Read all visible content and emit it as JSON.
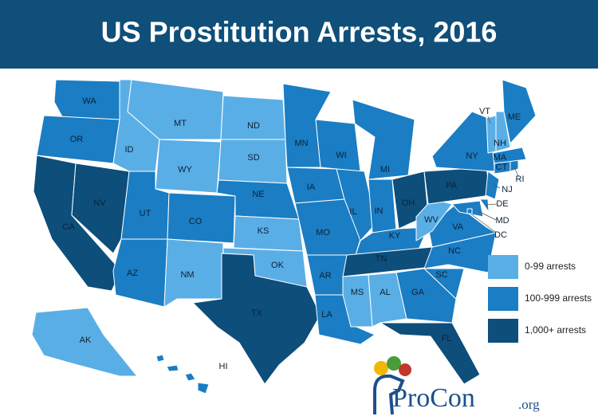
{
  "title": "US Prostitution Arrests, 2016",
  "legend": [
    {
      "label": "0-99 arrests",
      "color": "#5aaee6",
      "states": [
        "MT",
        "ID",
        "WY",
        "ND",
        "SD",
        "KS",
        "NM",
        "OK",
        "MS",
        "AL",
        "WV",
        "AK",
        "VT",
        "NH"
      ]
    },
    {
      "label": "100-999 arrests",
      "color": "#1b7dc3",
      "states": [
        "WA",
        "OR",
        "UT",
        "AZ",
        "CO",
        "NE",
        "MN",
        "IA",
        "MO",
        "AR",
        "LA",
        "WI",
        "IL",
        "MI",
        "IN",
        "KY",
        "GA",
        "SC",
        "NC",
        "VA",
        "NY",
        "ME",
        "MA",
        "RI",
        "CT",
        "NJ",
        "DE",
        "MD",
        "DC",
        "HI"
      ]
    },
    {
      "label": "1,000+ arrests",
      "color": "#0d4e7b",
      "states": [
        "CA",
        "NV",
        "TX",
        "TN",
        "OH",
        "PA",
        "FL"
      ]
    }
  ],
  "logo": {
    "name": "ProCon",
    "suffix": ".org"
  }
}
